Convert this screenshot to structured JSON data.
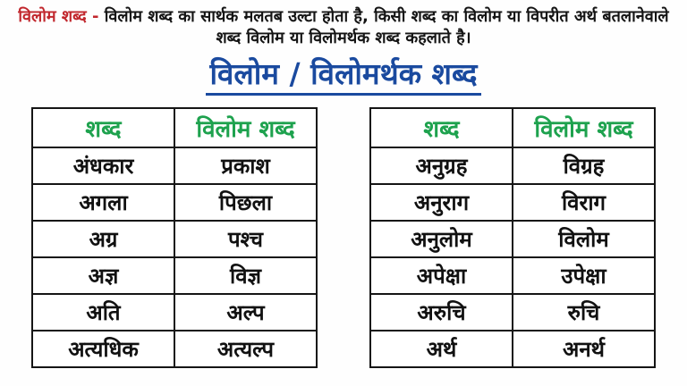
{
  "colors": {
    "highlight_red": "#c1272d",
    "title_blue": "#1a4a9f",
    "header_green": "#1ea24e",
    "text_black": "#111111",
    "background": "#fefefe"
  },
  "intro": {
    "highlight": "विलोम शब्द -",
    "text": " विलोम शब्द का सार्थक मलतब उल्टा होता है, किसी शब्द का विलोम या विपरीत अर्थ बतलानेवाले शब्द विलोम या विलोमर्थक शब्द कहलाते है।"
  },
  "title": "विलोम / विलोमर्थक शब्द",
  "tables": [
    {
      "headers": [
        "शब्द",
        "विलोम शब्द"
      ],
      "rows": [
        [
          "अंधकार",
          "प्रकाश"
        ],
        [
          "अगला",
          "पिछला"
        ],
        [
          "अग्र",
          "पश्च"
        ],
        [
          "अज्ञ",
          "विज्ञ"
        ],
        [
          "अति",
          "अल्प"
        ],
        [
          "अत्यधिक",
          "अत्यल्प"
        ]
      ]
    },
    {
      "headers": [
        "शब्द",
        "विलोम शब्द"
      ],
      "rows": [
        [
          "अनुग्रह",
          "विग्रह"
        ],
        [
          "अनुराग",
          "विराग"
        ],
        [
          "अनुलोम",
          "विलोम"
        ],
        [
          "अपेक्षा",
          "उपेक्षा"
        ],
        [
          "अरुचि",
          "रुचि"
        ],
        [
          "अर्थ",
          "अनर्थ"
        ]
      ]
    }
  ]
}
